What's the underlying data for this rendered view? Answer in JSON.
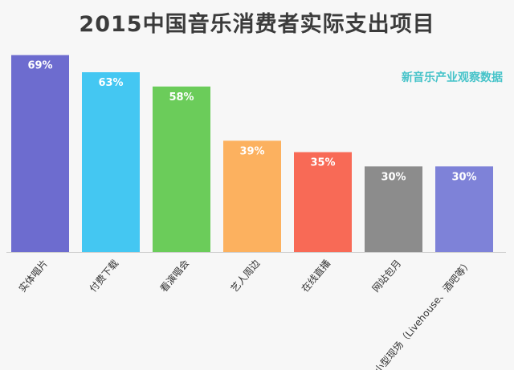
{
  "title": "2015中国音乐消费者实际支出项目",
  "source_note": "新音乐产业观察数据",
  "chart_data": {
    "type": "bar",
    "title": "2015中国音乐消费者实际支出项目",
    "categories": [
      "实体唱片",
      "付费下载",
      "看演唱会",
      "艺人周边",
      "在线直播",
      "网站包月",
      "小型现场（Livehouse、酒吧等）"
    ],
    "values": [
      69,
      63,
      58,
      39,
      35,
      30,
      30
    ],
    "value_labels": [
      "69%",
      "63%",
      "58%",
      "39%",
      "35%",
      "30%",
      "30%"
    ],
    "colors": [
      "#6d6ccf",
      "#44c7f2",
      "#6bcc5a",
      "#fcb15f",
      "#f86a56",
      "#8c8c8c",
      "#7e82d8"
    ],
    "ylim": [
      0,
      72
    ],
    "grid": false,
    "legend": "none"
  }
}
